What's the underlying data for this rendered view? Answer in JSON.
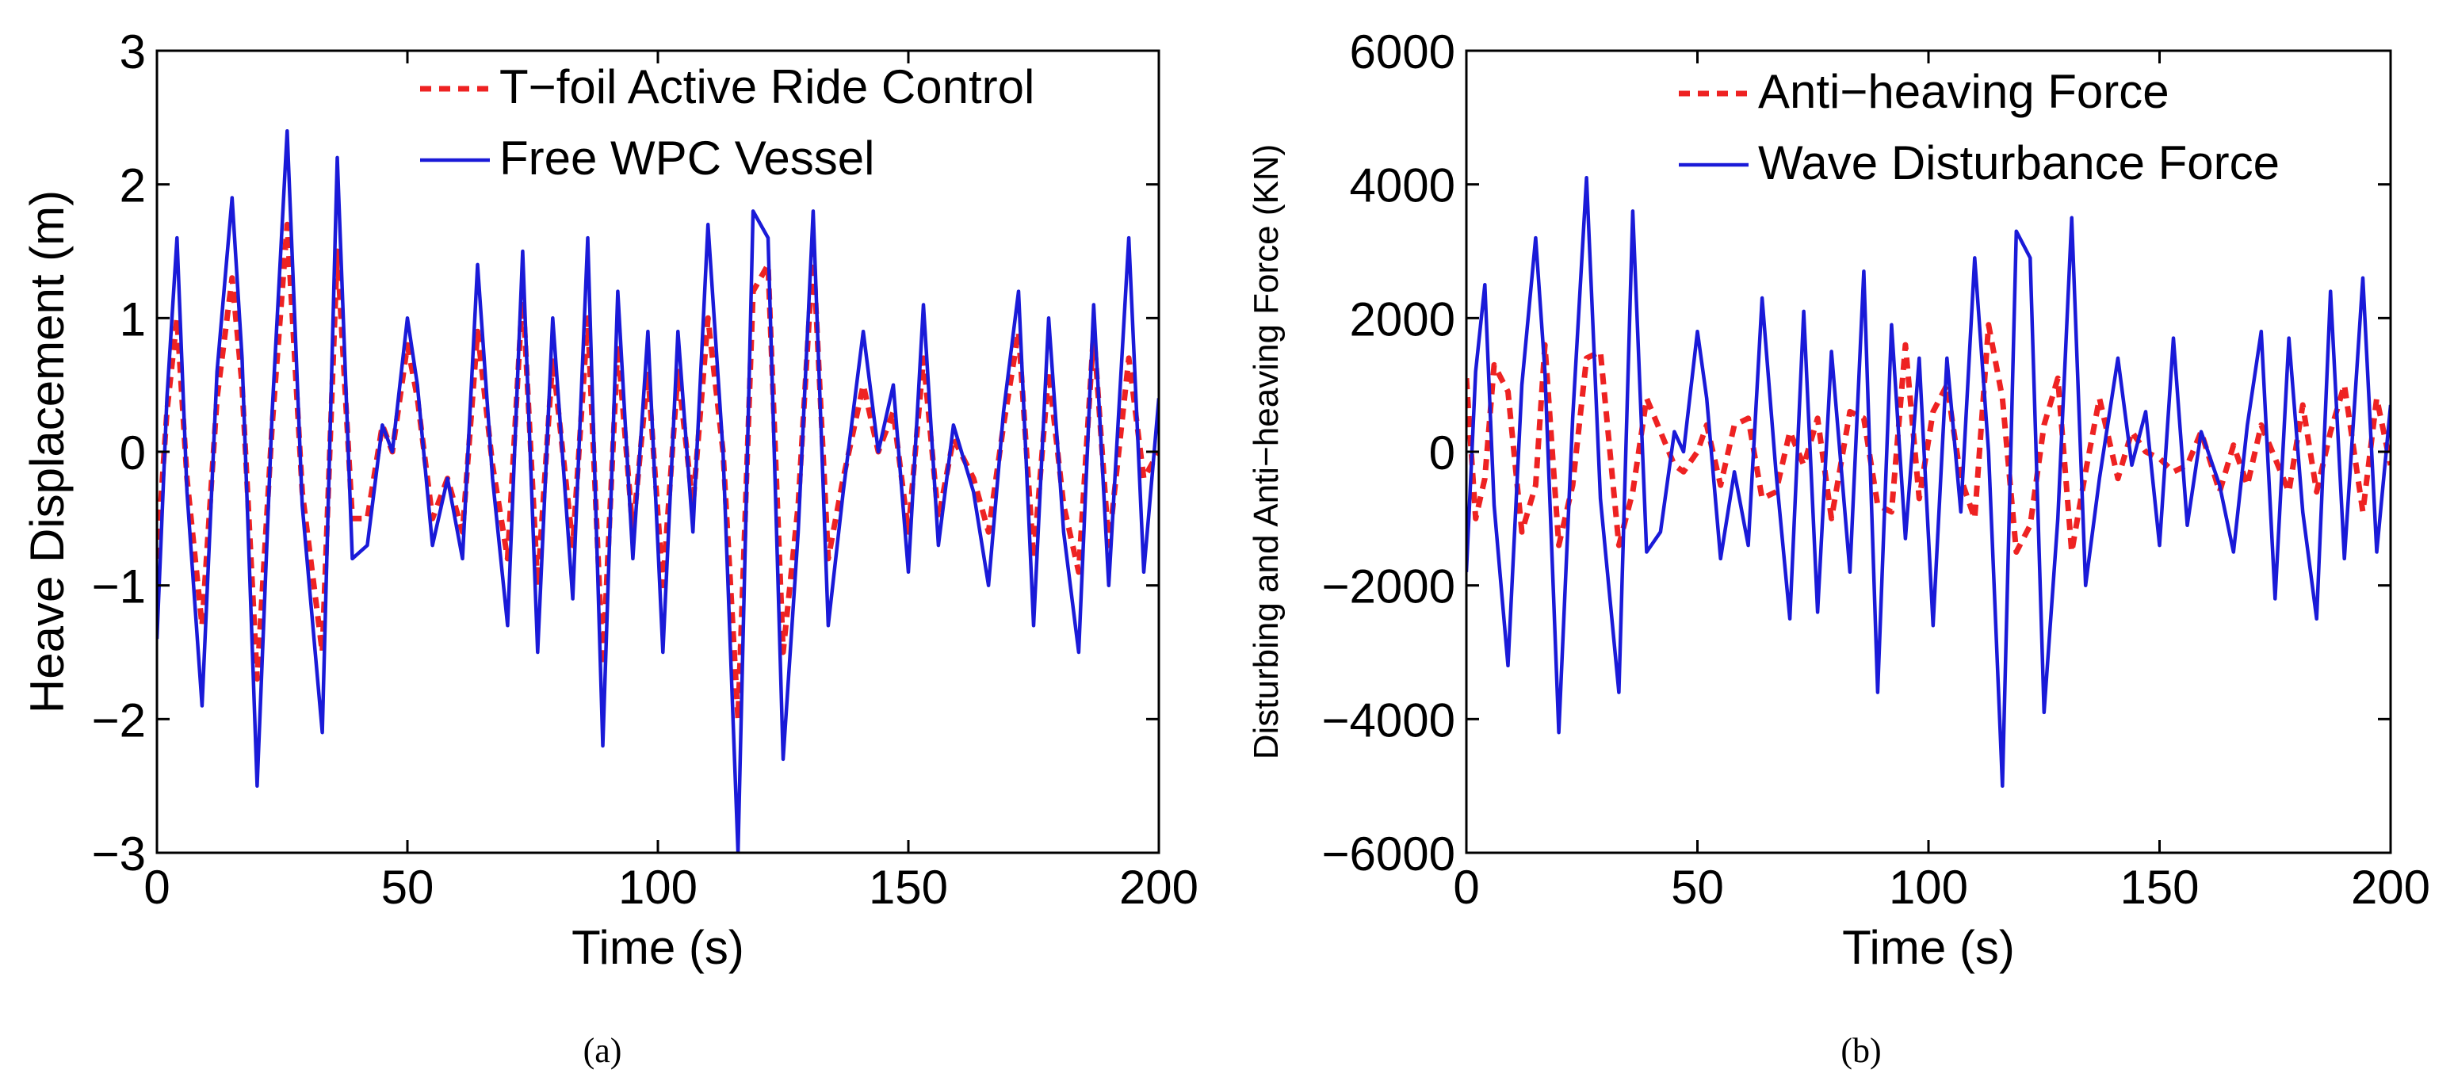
{
  "colors": {
    "series1": "#ee2222",
    "series2": "#1a1ad8",
    "axis": "#000000"
  },
  "chart_data": [
    {
      "type": "line",
      "caption": "(a)",
      "xlabel": "Time (s)",
      "ylabel": "Heave Displacement (m)",
      "xlim": [
        0,
        200
      ],
      "ylim": [
        -3,
        3
      ],
      "xticks": [
        0,
        50,
        100,
        150,
        200
      ],
      "yticks": [
        -3,
        -2,
        -1,
        0,
        1,
        2,
        3
      ],
      "grid": false,
      "legend_position": "top-right",
      "series": [
        {
          "name": "T−foil Active Ride Control",
          "style": "dashed",
          "x": [
            0,
            2,
            4,
            6,
            9,
            12,
            15,
            17,
            20,
            23,
            26,
            29,
            33,
            36,
            39,
            42,
            45,
            47,
            50,
            52,
            55,
            58,
            61,
            64,
            67,
            70,
            73,
            76,
            79,
            83,
            86,
            89,
            92,
            95,
            98,
            101,
            104,
            107,
            110,
            113,
            116,
            119,
            122,
            125,
            128,
            131,
            134,
            137,
            141,
            144,
            147,
            150,
            153,
            156,
            159,
            163,
            166,
            169,
            172,
            175,
            178,
            181,
            184,
            187,
            190,
            194,
            197,
            200
          ],
          "y": [
            -0.8,
            0.3,
            1.0,
            -0.2,
            -1.3,
            0.4,
            1.3,
            0.5,
            -1.7,
            0.2,
            1.7,
            -0.3,
            -1.5,
            1.5,
            -0.5,
            -0.5,
            0.2,
            0.0,
            0.8,
            0.4,
            -0.5,
            -0.2,
            -0.6,
            0.9,
            -0.1,
            -0.8,
            1.2,
            -1.0,
            0.7,
            -0.7,
            1.0,
            -1.6,
            0.8,
            -0.6,
            0.6,
            -1.0,
            0.6,
            -0.4,
            1.0,
            0.0,
            -2.0,
            1.2,
            1.4,
            -1.5,
            -0.4,
            1.5,
            -0.8,
            -0.2,
            0.5,
            0.0,
            0.3,
            -0.6,
            0.7,
            -0.5,
            0.1,
            -0.2,
            -0.6,
            0.2,
            0.9,
            -0.8,
            0.6,
            -0.4,
            -0.9,
            0.9,
            -0.7,
            0.7,
            -0.2,
            0.0
          ]
        },
        {
          "name": "Free WPC Vessel",
          "style": "solid",
          "x": [
            0,
            2,
            4,
            6,
            9,
            12,
            15,
            17,
            20,
            23,
            26,
            29,
            33,
            36,
            39,
            42,
            45,
            47,
            50,
            52,
            55,
            58,
            61,
            64,
            67,
            70,
            73,
            76,
            79,
            83,
            86,
            89,
            92,
            95,
            98,
            101,
            104,
            107,
            110,
            113,
            116,
            119,
            122,
            125,
            128,
            131,
            134,
            137,
            141,
            144,
            147,
            150,
            153,
            156,
            159,
            163,
            166,
            169,
            172,
            175,
            178,
            181,
            184,
            187,
            190,
            194,
            197,
            200
          ],
          "y": [
            -1.4,
            0.4,
            1.6,
            -0.3,
            -1.9,
            0.6,
            1.9,
            0.7,
            -2.5,
            0.3,
            2.4,
            -0.4,
            -2.1,
            2.2,
            -0.8,
            -0.7,
            0.2,
            0.0,
            1.0,
            0.5,
            -0.7,
            -0.2,
            -0.8,
            1.4,
            -0.2,
            -1.3,
            1.5,
            -1.5,
            1.0,
            -1.1,
            1.6,
            -2.2,
            1.2,
            -0.8,
            0.9,
            -1.5,
            0.9,
            -0.6,
            1.7,
            0.0,
            -3.0,
            1.8,
            1.6,
            -2.3,
            -0.6,
            1.8,
            -1.3,
            -0.3,
            0.9,
            0.0,
            0.5,
            -0.9,
            1.1,
            -0.7,
            0.2,
            -0.3,
            -1.0,
            0.3,
            1.2,
            -1.3,
            1.0,
            -0.6,
            -1.5,
            1.1,
            -1.0,
            1.6,
            -0.9,
            0.4
          ]
        }
      ]
    },
    {
      "type": "line",
      "caption": "(b)",
      "xlabel": "Time (s)",
      "ylabel": "Disturbing and Anti−heaving Force (KN)",
      "xlim": [
        0,
        200
      ],
      "ylim": [
        -6000,
        6000
      ],
      "xticks": [
        0,
        50,
        100,
        150,
        200
      ],
      "yticks": [
        -6000,
        -4000,
        -2000,
        0,
        2000,
        4000,
        6000
      ],
      "grid": false,
      "legend_position": "top-right",
      "series": [
        {
          "name": "Anti−heaving Force",
          "style": "dashed",
          "x": [
            0,
            2,
            4,
            6,
            9,
            12,
            15,
            17,
            20,
            23,
            26,
            29,
            33,
            36,
            39,
            42,
            45,
            47,
            50,
            52,
            55,
            58,
            61,
            64,
            67,
            70,
            73,
            76,
            79,
            83,
            86,
            89,
            92,
            95,
            98,
            101,
            104,
            107,
            110,
            113,
            116,
            119,
            122,
            125,
            128,
            131,
            134,
            137,
            141,
            144,
            147,
            150,
            153,
            156,
            159,
            163,
            166,
            169,
            172,
            175,
            178,
            181,
            184,
            187,
            190,
            194,
            197,
            200
          ],
          "y": [
            1100,
            -1000,
            -400,
            1300,
            900,
            -1200,
            -500,
            1600,
            -1400,
            -500,
            1400,
            1500,
            -1400,
            -600,
            800,
            300,
            -200,
            -300,
            0,
            400,
            -500,
            400,
            500,
            -700,
            -600,
            300,
            -200,
            500,
            -1000,
            600,
            500,
            -800,
            -900,
            1600,
            -700,
            600,
            1000,
            -400,
            -1000,
            1900,
            800,
            -1500,
            -1100,
            400,
            1100,
            -1500,
            -300,
            800,
            -400,
            300,
            0,
            -100,
            -300,
            -200,
            300,
            -600,
            100,
            -500,
            400,
            -100,
            -600,
            700,
            -600,
            300,
            1000,
            -900,
            800,
            -200
          ]
        },
        {
          "name": "Wave Disturbance Force",
          "style": "solid",
          "x": [
            0,
            2,
            4,
            6,
            9,
            12,
            15,
            17,
            20,
            23,
            26,
            29,
            33,
            36,
            39,
            42,
            45,
            47,
            50,
            52,
            55,
            58,
            61,
            64,
            67,
            70,
            73,
            76,
            79,
            83,
            86,
            89,
            92,
            95,
            98,
            101,
            104,
            107,
            110,
            113,
            116,
            119,
            122,
            125,
            128,
            131,
            134,
            137,
            141,
            144,
            147,
            150,
            153,
            156,
            159,
            163,
            166,
            169,
            172,
            175,
            178,
            181,
            184,
            187,
            190,
            194,
            197,
            200
          ],
          "y": [
            -1800,
            1200,
            2500,
            -800,
            -3200,
            1000,
            3200,
            1200,
            -4200,
            500,
            4100,
            -700,
            -3600,
            3600,
            -1500,
            -1200,
            300,
            0,
            1800,
            800,
            -1600,
            -300,
            -1400,
            2300,
            -300,
            -2500,
            2100,
            -2400,
            1500,
            -1800,
            2700,
            -3600,
            1900,
            -1300,
            1400,
            -2600,
            1400,
            -900,
            2900,
            0,
            -5000,
            3300,
            2900,
            -3900,
            -1000,
            3500,
            -2000,
            -400,
            1400,
            -200,
            600,
            -1400,
            1700,
            -1100,
            300,
            -500,
            -1500,
            400,
            1800,
            -2200,
            1700,
            -900,
            -2500,
            2400,
            -1600,
            2600,
            -1500,
            700
          ]
        }
      ]
    }
  ]
}
